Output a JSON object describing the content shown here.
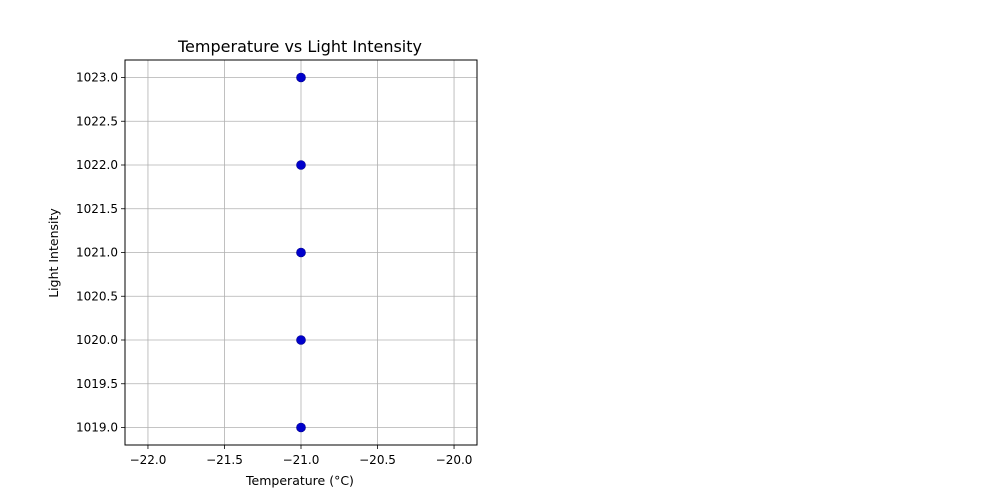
{
  "chart_data": {
    "type": "scatter",
    "title": "Temperature vs Light Intensity",
    "xlabel": "Temperature (°C)",
    "ylabel": "Light Intensity",
    "xlim": [
      -22.15,
      -19.85
    ],
    "ylim": [
      1018.8,
      1023.2
    ],
    "x_ticks": [
      -22.0,
      -21.5,
      -21.0,
      -20.5,
      -20.0
    ],
    "x_tick_labels": [
      "−22.0",
      "−21.5",
      "−21.0",
      "−20.5",
      "−20.0"
    ],
    "y_ticks": [
      1019.0,
      1019.5,
      1020.0,
      1020.5,
      1021.0,
      1021.5,
      1022.0,
      1022.5,
      1023.0
    ],
    "y_tick_labels": [
      "1019.0",
      "1019.5",
      "1020.0",
      "1020.5",
      "1021.0",
      "1021.5",
      "1022.0",
      "1022.5",
      "1023.0"
    ],
    "grid": true,
    "colors": {
      "point": "#0000cc",
      "grid": "#b0b0b0",
      "axes": "#000000"
    },
    "points": [
      {
        "x": -21.0,
        "y": 1023.0
      },
      {
        "x": -21.0,
        "y": 1022.0
      },
      {
        "x": -21.0,
        "y": 1021.0
      },
      {
        "x": -21.0,
        "y": 1020.0
      },
      {
        "x": -21.0,
        "y": 1019.0
      }
    ]
  }
}
